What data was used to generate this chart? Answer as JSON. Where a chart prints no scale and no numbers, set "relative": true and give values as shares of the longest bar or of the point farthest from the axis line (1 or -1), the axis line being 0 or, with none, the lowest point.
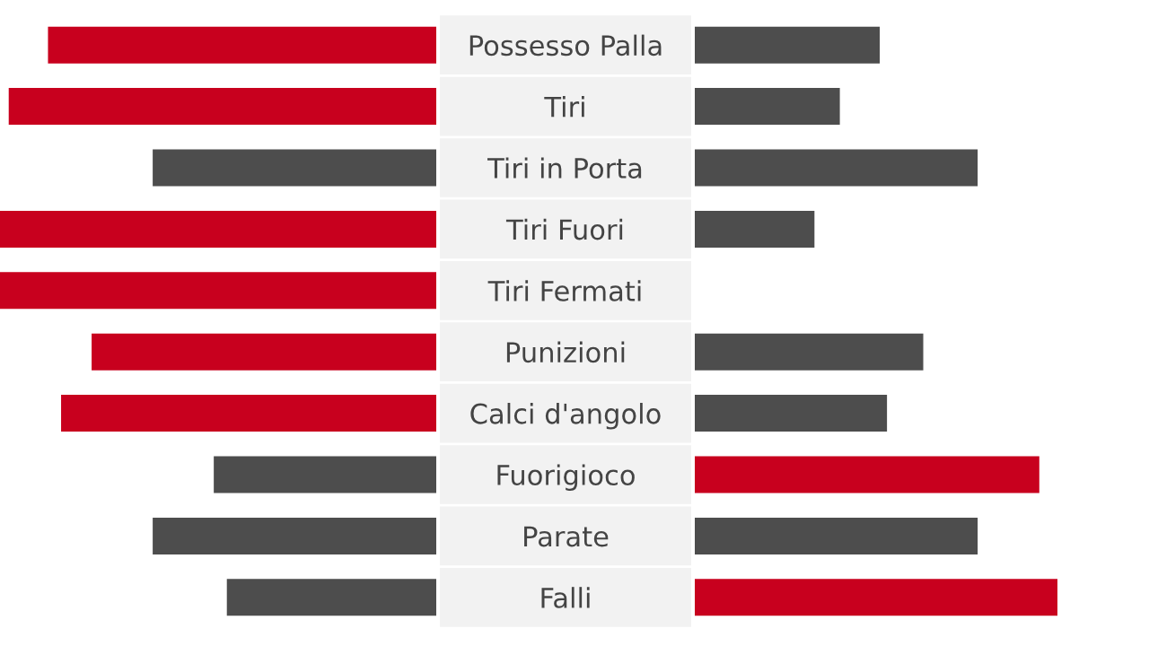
{
  "chart_data": [
    {
      "type": "bar",
      "orientation": "horizontal",
      "relative": true,
      "categories": [
        "Possesso Palla",
        "Tiri",
        "Tiri in Porta",
        "Tiri Fuori",
        "Tiri Fermati",
        "Punizioni",
        "Calci d'angolo",
        "Fuorigioco",
        "Parate",
        "Falli"
      ],
      "series": [
        {
          "values": [
            0.89,
            0.98,
            0.65,
            1,
            1,
            0.79,
            0.86,
            0.51,
            0.65,
            0.48
          ],
          "colors": [
            "#c8001e",
            "#c8001e",
            "#4d4d4d",
            "#c8001e",
            "#c8001e",
            "#c8001e",
            "#c8001e",
            "#4d4d4d",
            "#4d4d4d",
            "#4d4d4d"
          ]
        }
      ]
    },
    {
      "type": "bar",
      "orientation": "horizontal",
      "relative": true,
      "categories": [
        null,
        null,
        null,
        null,
        null,
        null,
        null,
        null,
        null,
        null
      ],
      "series": [
        {
          "values": [
            0.51,
            0.4,
            0.78,
            0.33,
            0,
            0.63,
            0.53,
            0.95,
            0.78,
            1
          ],
          "colors": [
            "#4d4d4d",
            "#4d4d4d",
            "#4d4d4d",
            "#4d4d4d",
            "#4d4d4d",
            "#4d4d4d",
            "#4d4d4d",
            "#c8001e",
            "#4d4d4d",
            "#c8001e"
          ]
        }
      ]
    }
  ]
}
